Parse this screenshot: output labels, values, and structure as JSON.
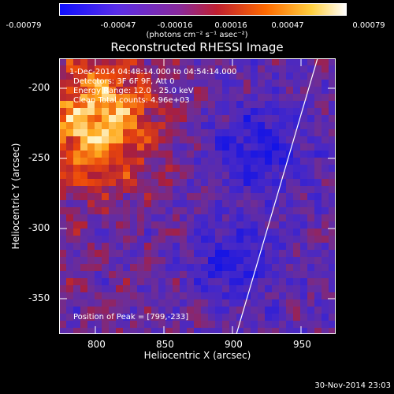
{
  "colorbar": {
    "ticks": [
      "-0.00079",
      "-0.00047",
      "-0.00016",
      "0.00016",
      "0.00047",
      "0.00079"
    ],
    "units": "(photons cm⁻² s⁻¹ asec⁻²)",
    "colors": [
      "#1010ff",
      "#6a30e0",
      "#9c2a8a",
      "#d02020",
      "#ff7a00",
      "#ffe060",
      "#ffffff"
    ]
  },
  "title": "Reconstructed RHESSI Image",
  "annotations": {
    "time_range": "1-Dec-2014 04:48:14.000 to 04:54:14.000",
    "detectors": "Detectors: 3F 6F 9F, Att 0",
    "energy": "Energy Range: 12.0 - 25.0 keV",
    "clean": "Clean    Total counts: 4.96e+03",
    "peak": "Position of Peak = [799,-233]"
  },
  "axes": {
    "xlabel": "Heliocentric X (arcsec)",
    "ylabel": "Heliocentric Y (arcsec)",
    "xticks": [
      "800",
      "850",
      "900",
      "950"
    ],
    "yticks": [
      "-200",
      "-250",
      "-300",
      "-350"
    ],
    "xlim": [
      778,
      967
    ],
    "ylim": [
      -373,
      -176
    ]
  },
  "limb_color": "#ffffff",
  "timestamp": "30-Nov-2014 23:03"
}
